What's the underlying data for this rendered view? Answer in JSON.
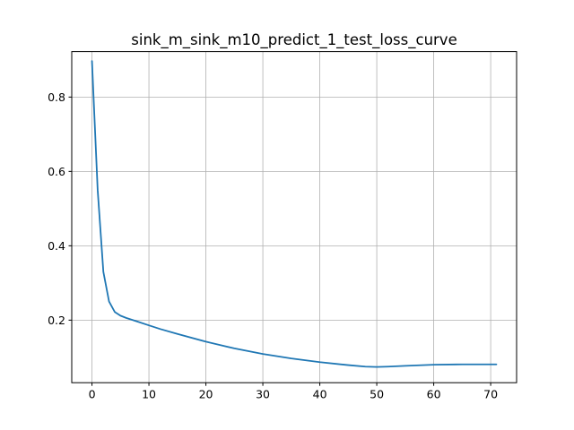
{
  "chart_data": {
    "type": "line",
    "title": "sink_m_sink_m10_predict_1_test_loss_curve",
    "xlabel": "",
    "ylabel": "",
    "xlim": [
      -3.55,
      74.55
    ],
    "ylim": [
      0.0317,
      0.9223
    ],
    "xticks": [
      0,
      10,
      20,
      30,
      40,
      50,
      60,
      70
    ],
    "xtick_labels": [
      "0",
      "10",
      "20",
      "30",
      "40",
      "50",
      "60",
      "70"
    ],
    "yticks": [
      0.2,
      0.4,
      0.6,
      0.8
    ],
    "ytick_labels": [
      "0.2",
      "0.4",
      "0.6",
      "0.8"
    ],
    "grid": true,
    "line_color": "#1f77b4",
    "series": [
      {
        "x": [
          0,
          1,
          2,
          3,
          4,
          5,
          6,
          8,
          10,
          12,
          15,
          20,
          25,
          30,
          35,
          40,
          45,
          48,
          50,
          52,
          55,
          60,
          65,
          68,
          71
        ],
        "values": [
          0.897,
          0.55,
          0.33,
          0.25,
          0.222,
          0.212,
          0.206,
          0.196,
          0.186,
          0.176,
          0.163,
          0.142,
          0.124,
          0.109,
          0.097,
          0.087,
          0.079,
          0.075,
          0.074,
          0.075,
          0.077,
          0.08,
          0.081,
          0.081,
          0.081
        ]
      }
    ]
  }
}
